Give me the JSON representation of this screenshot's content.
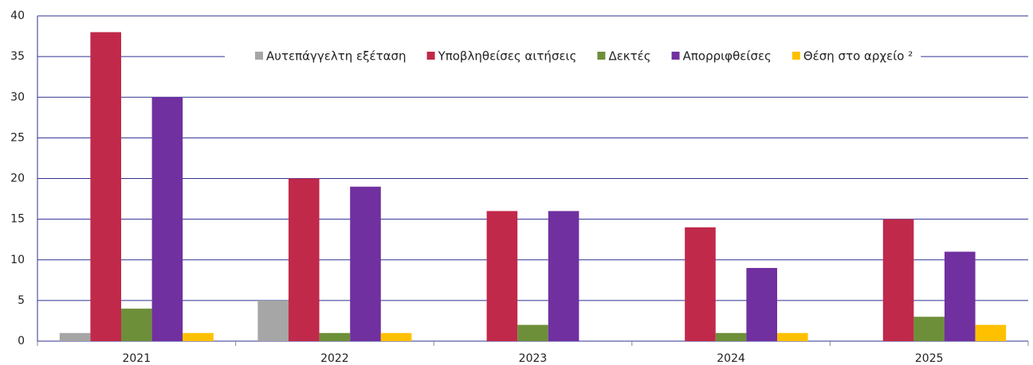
{
  "chart_data": {
    "type": "bar",
    "categories": [
      "2021",
      "2022",
      "2023",
      "2024",
      "2025"
    ],
    "series": [
      {
        "name": "Αυτεπάγγελτη εξέταση",
        "color": "#a6a6a6",
        "values": [
          1,
          5,
          0,
          0,
          0
        ]
      },
      {
        "name": "Υποβληθείσες αιτήσεις",
        "color": "#c0294a",
        "values": [
          38,
          20,
          16,
          14,
          15
        ]
      },
      {
        "name": "Δεκτές",
        "color": "#6d8f3a",
        "values": [
          4,
          1,
          2,
          1,
          3
        ]
      },
      {
        "name": "Απορριφθείσες",
        "color": "#7030a0",
        "values": [
          30,
          19,
          16,
          9,
          11
        ]
      },
      {
        "name": "Θέση στο αρχείο ²",
        "color": "#ffc000",
        "values": [
          1,
          1,
          0,
          1,
          2
        ]
      }
    ],
    "ylim": [
      0,
      40
    ],
    "yticks": [
      0,
      5,
      10,
      15,
      20,
      25,
      30,
      35,
      40
    ],
    "grid": true,
    "legend": "top"
  }
}
